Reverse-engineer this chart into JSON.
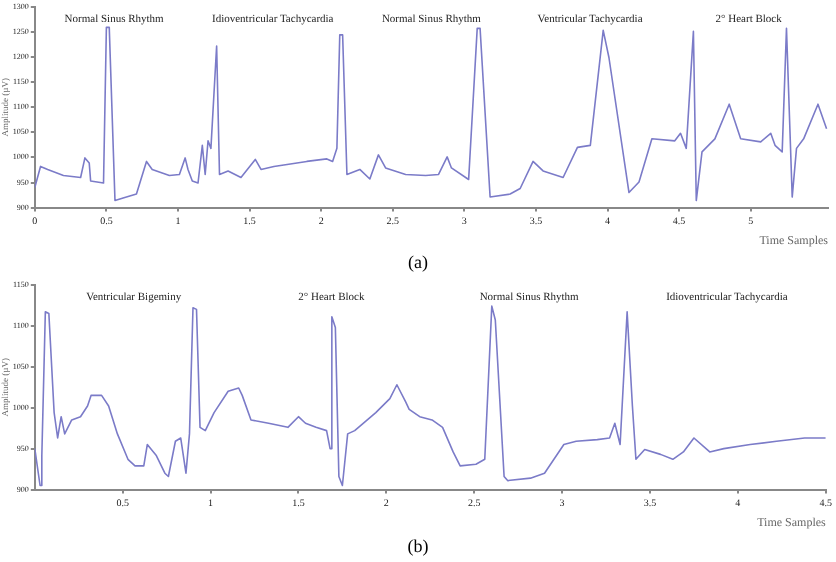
{
  "chart_data": [
    {
      "type": "line",
      "xlabel": "Time Samples",
      "ylabel": "Amplitude (µV)",
      "xlim": [
        0,
        5.54
      ],
      "ylim": [
        900,
        1300
      ],
      "title": "(a)",
      "xticks": [
        0,
        0.5,
        1,
        1.5,
        2,
        2.5,
        3,
        3.5,
        4,
        4.5,
        5
      ],
      "yticks": [
        900,
        950,
        1000,
        1050,
        1100,
        1150,
        1200,
        1250,
        1300
      ],
      "grid": false,
      "legend": false,
      "marker": "none",
      "line_style": "solid",
      "series": [
        {
          "color": "#7b7bc8",
          "x": [
            0,
            0.04,
            0.09,
            0.2,
            0.32,
            0.35,
            0.38,
            0.39,
            0.48,
            0.5,
            0.52,
            0.56,
            0.64,
            0.71,
            0.78,
            0.82,
            0.94,
            1.01,
            1.05,
            1.07,
            1.1,
            1.14,
            1.17,
            1.19,
            1.21,
            1.23,
            1.27,
            1.29,
            1.35,
            1.44,
            1.54,
            1.58,
            1.67,
            1.9,
            2.04,
            2.08,
            2.11,
            2.13,
            2.15,
            2.18,
            2.27,
            2.34,
            2.4,
            2.45,
            2.59,
            2.73,
            2.82,
            2.88,
            2.91,
            3.03,
            3.09,
            3.11,
            3.18,
            3.32,
            3.39,
            3.48,
            3.55,
            3.69,
            3.79,
            3.88,
            3.97,
            4.01,
            4.15,
            4.22,
            4.31,
            4.47,
            4.51,
            4.55,
            4.6,
            4.62,
            4.66,
            4.75,
            4.85,
            4.93,
            5.07,
            5.14,
            5.17,
            5.22,
            5.25,
            5.29,
            5.32,
            5.37,
            5.47,
            5.53
          ],
          "values": [
            940,
            982,
            976,
            964,
            960,
            999,
            989,
            953,
            949,
            1259,
            1259,
            914,
            921,
            927,
            992,
            976,
            964,
            966,
            999,
            976,
            953,
            949,
            1024,
            966,
            1033,
            1018,
            1222,
            966,
            973,
            960,
            996,
            976,
            982,
            992,
            997,
            992,
            1018,
            1244,
            1244,
            966,
            976,
            957,
            1005,
            979,
            966,
            964,
            966,
            1001,
            979,
            956,
            1257,
            1257,
            921,
            927,
            938,
            992,
            973,
            960,
            1020,
            1024,
            1253,
            1199,
            930,
            951,
            1037,
            1033,
            1048,
            1018,
            1251,
            914,
            1011,
            1037,
            1106,
            1037,
            1031,
            1048,
            1024,
            1011,
            1257,
            921,
            1018,
            1037,
            1106,
            1057
          ]
        }
      ],
      "annotations": [
        "Normal Sinus Rhythm",
        "Idioventricular Tachycardia",
        "Normal Sinus Rhythm",
        "Ventricular Tachycardia",
        "2° Heart Block"
      ]
    },
    {
      "type": "line",
      "xlabel": "Time Samples",
      "ylabel": "Amplitude (µV)",
      "xlim": [
        0,
        4.5
      ],
      "ylim": [
        900,
        1150
      ],
      "title": "(b)",
      "xticks": [
        0.5,
        1,
        1.5,
        2,
        2.5,
        3,
        3.5,
        4,
        4.5
      ],
      "yticks": [
        900,
        950,
        1000,
        1050,
        1100,
        1150
      ],
      "grid": false,
      "legend": false,
      "marker": "none",
      "line_style": "solid",
      "series": [
        {
          "color": "#7b7bc8",
          "x": [
            0,
            0.03,
            0.04,
            0.06,
            0.08,
            0.11,
            0.13,
            0.15,
            0.17,
            0.21,
            0.26,
            0.3,
            0.32,
            0.38,
            0.42,
            0.47,
            0.53,
            0.57,
            0.62,
            0.64,
            0.69,
            0.74,
            0.76,
            0.8,
            0.83,
            0.86,
            0.88,
            0.9,
            0.92,
            0.94,
            0.97,
            1.02,
            1.1,
            1.16,
            1.18,
            1.23,
            1.33,
            1.44,
            1.5,
            1.54,
            1.6,
            1.66,
            1.68,
            1.69,
            1.71,
            1.73,
            1.75,
            1.78,
            1.82,
            1.94,
            2.02,
            2.06,
            2.11,
            2.13,
            2.19,
            2.26,
            2.32,
            2.38,
            2.42,
            2.51,
            2.56,
            2.6,
            2.62,
            2.67,
            2.69,
            2.82,
            2.9,
            3.01,
            3.08,
            3.2,
            3.27,
            3.3,
            3.33,
            3.37,
            3.4,
            3.42,
            3.47,
            3.56,
            3.63,
            3.69,
            3.75,
            3.84,
            3.92,
            4.07,
            4.22,
            4.38,
            4.5
          ],
          "values": [
            950,
            905,
            942,
            1117,
            1115,
            994,
            963,
            989,
            968,
            985,
            989,
            1002,
            1015,
            1015,
            1002,
            968,
            937,
            929,
            929,
            955,
            942,
            920,
            916,
            959,
            963,
            920,
            968,
            1122,
            1120,
            976,
            972,
            994,
            1020,
            1024,
            1015,
            985,
            981,
            976,
            989,
            981,
            976,
            972,
            950,
            1111,
            1098,
            916,
            905,
            968,
            972,
            994,
            1011,
            1028,
            1007,
            998,
            989,
            985,
            976,
            946,
            929,
            931,
            937,
            1124,
            1107,
            916,
            911,
            914,
            920,
            955,
            959,
            961,
            963,
            981,
            955,
            1117,
            1002,
            937,
            949,
            943,
            937,
            946,
            963,
            946,
            950,
            955,
            959,
            963,
            963
          ]
        }
      ],
      "annotations": [
        "Ventricular Bigeminy",
        "2° Heart Block",
        "Normal Sinus Rhythm",
        "Idioventricular Tachycardia"
      ]
    }
  ]
}
